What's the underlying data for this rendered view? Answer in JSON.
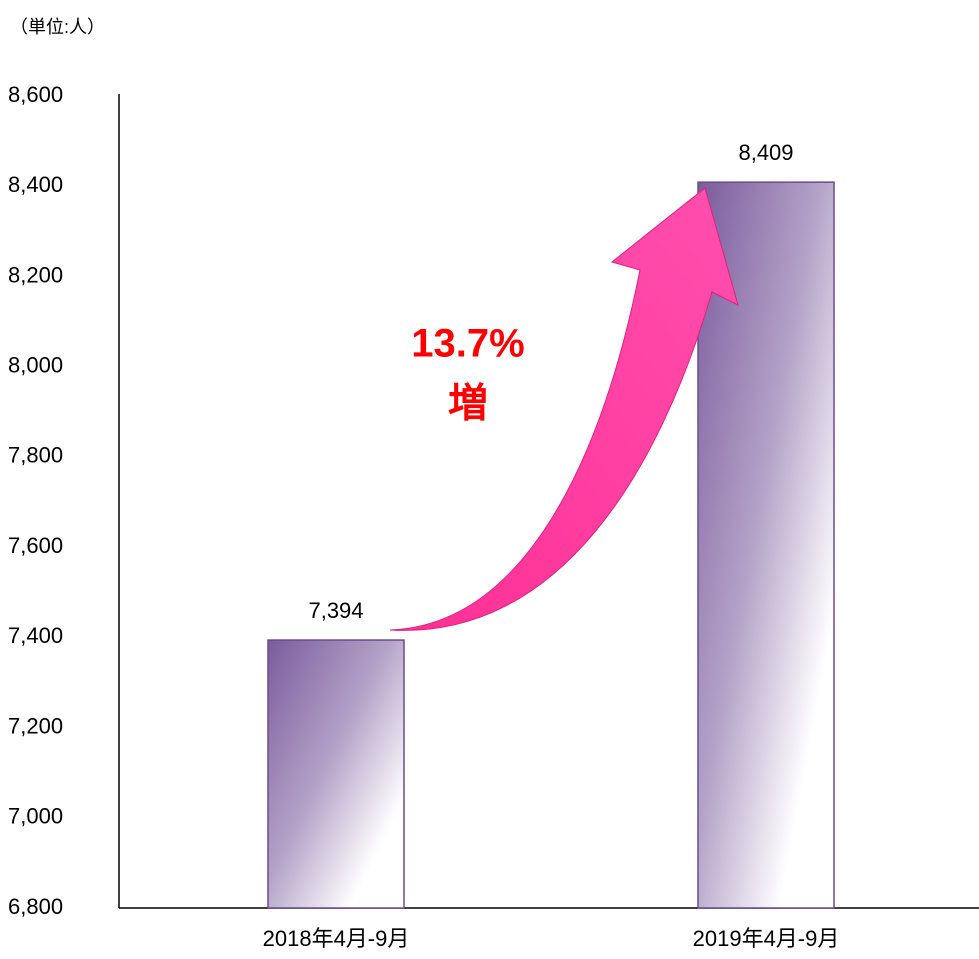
{
  "chart_data": {
    "type": "bar",
    "y_label": "（単位:人）",
    "categories": [
      "2018年4月-9月",
      "2019年4月-9月"
    ],
    "values": [
      7394,
      8409
    ],
    "value_labels": [
      "7,394",
      "8,409"
    ],
    "color": "#7a5c9c",
    "ylim": [
      6800,
      8600
    ],
    "yticks": [
      {
        "value": 6800,
        "label": "6,800"
      },
      {
        "value": 7000,
        "label": "7,000"
      },
      {
        "value": 7200,
        "label": "7,200"
      },
      {
        "value": 7400,
        "label": "7,400"
      },
      {
        "value": 7600,
        "label": "7,600"
      },
      {
        "value": 7800,
        "label": "7,800"
      },
      {
        "value": 8000,
        "label": "8,000"
      },
      {
        "value": 8200,
        "label": "8,200"
      },
      {
        "value": 8400,
        "label": "8,400"
      },
      {
        "value": 8600,
        "label": "8,600"
      }
    ],
    "grid": false,
    "annotations": [
      "13.7%",
      "増"
    ]
  }
}
